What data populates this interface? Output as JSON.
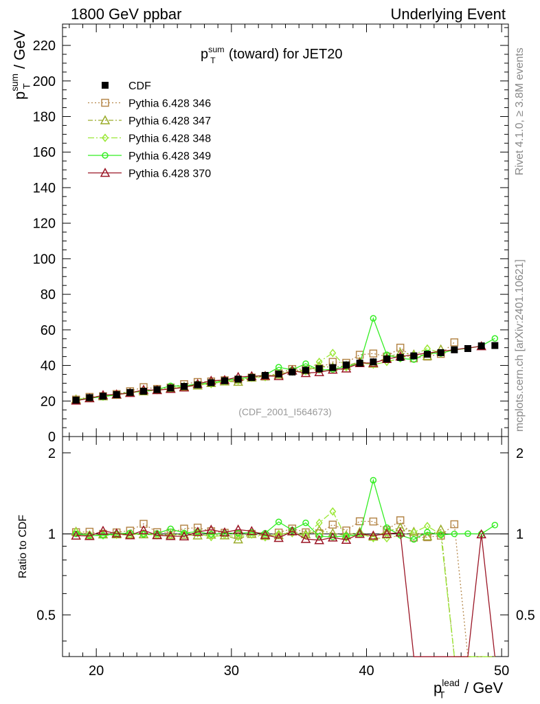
{
  "header": {
    "left": "1800 GeV ppbar",
    "right": "Underlying Event"
  },
  "side_labels": {
    "rivet": "Rivet 4.1.0, ≥ 3.8M events",
    "mcplots": "mcplots.cern.ch [arXiv:2401.10621]"
  },
  "chart_data": {
    "type": "scatter",
    "title": "p_T^sum (toward) for JET20",
    "title_parts": {
      "main": "p",
      "sup": "sum",
      "sub": "T",
      "rest": " (toward) for JET20"
    },
    "watermark": "(CDF_2001_I564673)",
    "xlabel": "p_T^lead / GeV",
    "xlabel_parts": {
      "main": "p",
      "sup": "lead",
      "sub": "T",
      "rest": " / GeV"
    },
    "ylabel": "p_T^sum / GeV",
    "ylabel_parts": {
      "main": "p",
      "sup": "sum",
      "sub": "T",
      "rest": " / GeV"
    },
    "ratio_ylabel": "Ratio to CDF",
    "xlim": [
      17.5,
      50.5
    ],
    "ylim": [
      0,
      232
    ],
    "ratio_ylim": [
      0.35,
      2.3
    ],
    "xticks": [
      20,
      30,
      40,
      50
    ],
    "yticks": [
      0,
      20,
      40,
      60,
      80,
      100,
      120,
      140,
      160,
      180,
      200,
      220
    ],
    "ratio_yticks": [
      0.5,
      1,
      2
    ],
    "legend_position": "top-left",
    "x": [
      18.5,
      19.5,
      20.5,
      21.5,
      22.5,
      23.5,
      24.5,
      25.5,
      26.5,
      27.5,
      28.5,
      29.5,
      30.5,
      31.5,
      32.5,
      33.5,
      34.5,
      35.5,
      36.5,
      37.5,
      38.5,
      39.5,
      40.5,
      41.5,
      42.5,
      43.5,
      44.5,
      45.5,
      46.5,
      47.5,
      48.5,
      49.5
    ],
    "data": {
      "name": "CDF",
      "color": "#000000",
      "values": [
        20.5,
        21.9,
        22.7,
        23.6,
        24.8,
        25.5,
        26.4,
        27.3,
        28.2,
        29.1,
        30.3,
        31.4,
        32.3,
        33.2,
        34.4,
        35.2,
        36.3,
        37.3,
        38.2,
        38.8,
        40.3,
        41.3,
        42.0,
        43.6,
        44.5,
        45.4,
        46.3,
        47.2,
        48.8,
        49.5,
        51.0,
        51.2
      ]
    },
    "series": [
      {
        "name": "Pythia 6.428 346",
        "color": "#b5874a",
        "marker": "square",
        "dash": "2,3",
        "values": [
          20.8,
          22.3,
          22.7,
          23.9,
          25.5,
          27.8,
          26.8,
          27.6,
          29.5,
          30.7,
          31.0,
          31.7,
          32.0,
          33.2,
          33.8,
          35.6,
          38.0,
          37.8,
          38.4,
          42.0,
          41.5,
          46.0,
          46.7,
          45.0,
          50.0,
          44.0,
          45.0,
          46.5,
          53.0,
          null,
          null,
          null
        ]
      },
      {
        "name": "Pythia 6.428 347",
        "color": "#9aab2a",
        "marker": "triangle",
        "dash": "7,3,2,3",
        "values": [
          20.9,
          21.6,
          22.6,
          23.5,
          24.7,
          25.4,
          26.2,
          27.1,
          28.0,
          28.7,
          30.1,
          31.0,
          30.8,
          33.2,
          33.9,
          34.8,
          37.1,
          37.2,
          39.4,
          39.0,
          39.8,
          42.0,
          41.0,
          44.4,
          47.0,
          46.2,
          45.3,
          49.0,
          null,
          null,
          null,
          null
        ]
      },
      {
        "name": "Pythia 6.428 348",
        "color": "#9ae835",
        "marker": "diamond",
        "dash": "9,3,2,3",
        "values": [
          20.9,
          21.8,
          22.4,
          23.4,
          24.6,
          25.6,
          26.1,
          27.0,
          28.3,
          29.2,
          29.5,
          31.1,
          31.5,
          33.0,
          33.4,
          35.2,
          36.5,
          36.8,
          42.0,
          47.0,
          39.0,
          41.5,
          40.5,
          42.0,
          44.0,
          46.0,
          49.5,
          47.0,
          null,
          null,
          null,
          null
        ]
      },
      {
        "name": "Pythia 6.428 349",
        "color": "#33ee22",
        "marker": "circle",
        "dash": "",
        "values": [
          20.5,
          21.6,
          22.4,
          23.6,
          25.0,
          25.4,
          26.5,
          28.5,
          28.4,
          29.7,
          30.2,
          31.6,
          32.5,
          33.6,
          34.6,
          39.0,
          37.5,
          41.0,
          37.4,
          37.8,
          39.6,
          41.0,
          66.5,
          46.0,
          44.0,
          43.3,
          47.0,
          46.8,
          48.8,
          49.6,
          51.0,
          55.2
        ]
      },
      {
        "name": "Pythia 6.428 370",
        "color": "#9a1424",
        "marker": "triangle",
        "dash": "",
        "values": [
          20.2,
          21.5,
          23.3,
          23.7,
          24.5,
          26.3,
          26.1,
          26.8,
          27.6,
          29.6,
          31.4,
          31.8,
          33.5,
          34.0,
          34.1,
          34.0,
          37.1,
          35.7,
          36.2,
          37.6,
          38.3,
          41.3,
          41.4,
          43.6,
          45.0,
          null,
          null,
          null,
          null,
          null,
          50.8,
          null
        ]
      }
    ]
  }
}
